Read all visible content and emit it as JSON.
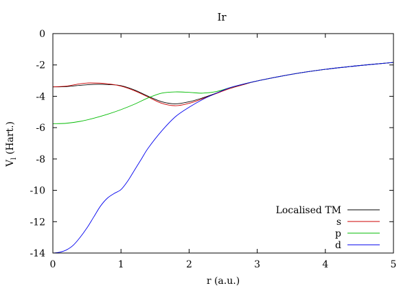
{
  "chart_data": {
    "type": "line",
    "title": "Ir",
    "xlabel": "r (a.u.)",
    "ylabel_main": "V",
    "ylabel_sub": "l",
    "ylabel_tail": " (Hart.)",
    "xlim": [
      0,
      5
    ],
    "ylim": [
      -14,
      0
    ],
    "x_ticks": [
      0,
      1,
      2,
      3,
      4,
      5
    ],
    "y_ticks": [
      -14,
      -12,
      -10,
      -8,
      -6,
      -4,
      -2,
      0
    ],
    "grid": false,
    "legend_position": "bottom-right",
    "series": [
      {
        "name": "Localised TM",
        "color": "#000000",
        "points": [
          [
            0,
            -3.4
          ],
          [
            0.2,
            -3.38
          ],
          [
            0.4,
            -3.3
          ],
          [
            0.6,
            -3.24
          ],
          [
            0.8,
            -3.25
          ],
          [
            1.0,
            -3.32
          ],
          [
            1.2,
            -3.6
          ],
          [
            1.4,
            -4.0
          ],
          [
            1.6,
            -4.35
          ],
          [
            1.8,
            -4.48
          ],
          [
            2.0,
            -4.35
          ],
          [
            2.2,
            -4.1
          ],
          [
            2.4,
            -3.8
          ],
          [
            2.6,
            -3.5
          ],
          [
            2.8,
            -3.25
          ],
          [
            3.0,
            -3.02
          ],
          [
            3.5,
            -2.6
          ],
          [
            4.0,
            -2.28
          ],
          [
            4.5,
            -2.04
          ],
          [
            5.0,
            -1.84
          ]
        ]
      },
      {
        "name": "s",
        "color": "#cc0000",
        "points": [
          [
            0,
            -3.4
          ],
          [
            0.2,
            -3.35
          ],
          [
            0.4,
            -3.2
          ],
          [
            0.55,
            -3.15
          ],
          [
            0.8,
            -3.2
          ],
          [
            1.0,
            -3.35
          ],
          [
            1.2,
            -3.65
          ],
          [
            1.4,
            -4.05
          ],
          [
            1.6,
            -4.45
          ],
          [
            1.8,
            -4.6
          ],
          [
            2.0,
            -4.45
          ],
          [
            2.2,
            -4.15
          ],
          [
            2.4,
            -3.82
          ],
          [
            2.6,
            -3.5
          ],
          [
            2.8,
            -3.25
          ],
          [
            3.0,
            -3.02
          ],
          [
            3.5,
            -2.6
          ],
          [
            4.0,
            -2.28
          ],
          [
            4.5,
            -2.04
          ],
          [
            5.0,
            -1.84
          ]
        ]
      },
      {
        "name": "p",
        "color": "#00bb00",
        "points": [
          [
            0,
            -5.75
          ],
          [
            0.2,
            -5.72
          ],
          [
            0.4,
            -5.6
          ],
          [
            0.6,
            -5.4
          ],
          [
            0.8,
            -5.15
          ],
          [
            1.0,
            -4.85
          ],
          [
            1.2,
            -4.5
          ],
          [
            1.4,
            -4.1
          ],
          [
            1.6,
            -3.8
          ],
          [
            1.8,
            -3.72
          ],
          [
            2.0,
            -3.75
          ],
          [
            2.2,
            -3.8
          ],
          [
            2.4,
            -3.7
          ],
          [
            2.6,
            -3.45
          ],
          [
            2.8,
            -3.22
          ],
          [
            3.0,
            -3.02
          ],
          [
            3.5,
            -2.6
          ],
          [
            4.0,
            -2.28
          ],
          [
            4.5,
            -2.04
          ],
          [
            5.0,
            -1.84
          ]
        ]
      },
      {
        "name": "d",
        "color": "#0000ee",
        "points": [
          [
            0,
            -14.0
          ],
          [
            0.1,
            -13.95
          ],
          [
            0.2,
            -13.8
          ],
          [
            0.3,
            -13.5
          ],
          [
            0.4,
            -13.0
          ],
          [
            0.5,
            -12.4
          ],
          [
            0.6,
            -11.7
          ],
          [
            0.7,
            -11.0
          ],
          [
            0.8,
            -10.5
          ],
          [
            0.9,
            -10.2
          ],
          [
            1.0,
            -9.95
          ],
          [
            1.1,
            -9.4
          ],
          [
            1.2,
            -8.7
          ],
          [
            1.3,
            -8.0
          ],
          [
            1.4,
            -7.3
          ],
          [
            1.6,
            -6.2
          ],
          [
            1.8,
            -5.3
          ],
          [
            2.0,
            -4.7
          ],
          [
            2.2,
            -4.2
          ],
          [
            2.4,
            -3.8
          ],
          [
            2.6,
            -3.45
          ],
          [
            2.8,
            -3.22
          ],
          [
            3.0,
            -3.02
          ],
          [
            3.5,
            -2.6
          ],
          [
            4.0,
            -2.28
          ],
          [
            4.5,
            -2.04
          ],
          [
            5.0,
            -1.84
          ]
        ]
      }
    ]
  }
}
